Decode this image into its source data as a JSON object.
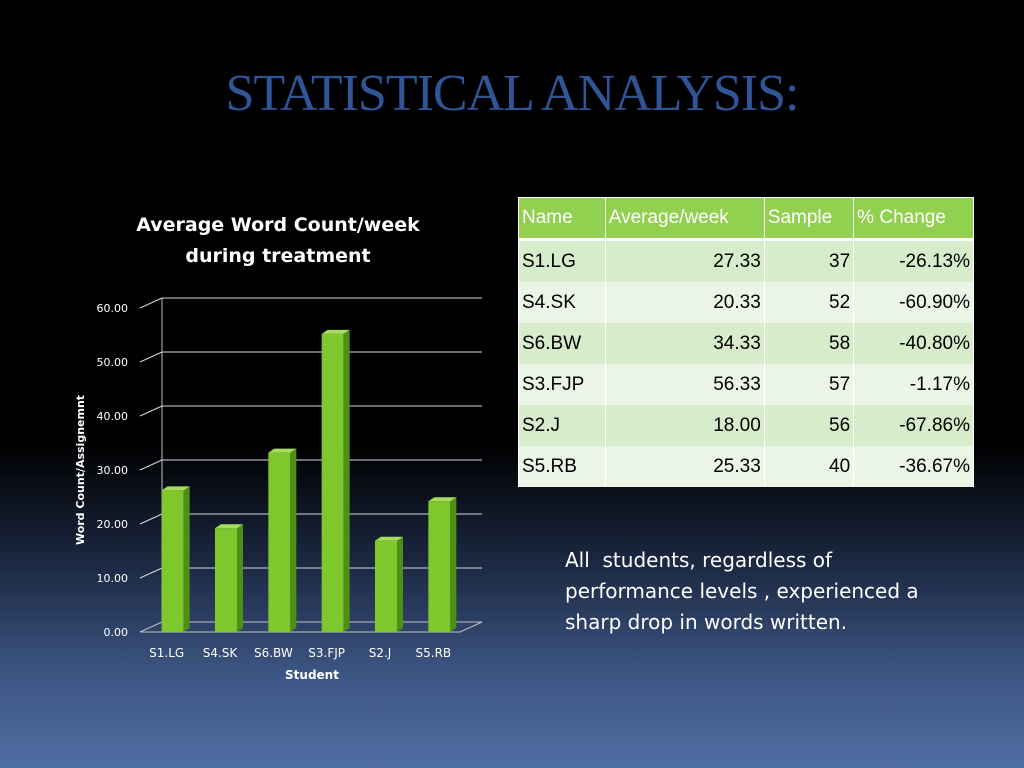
{
  "slide": {
    "title": "STATISTICAL ANALYSIS:",
    "summary": "All  students, regardless of performance levels , experienced a sharp drop in words written."
  },
  "chart_data": {
    "type": "bar",
    "title_line1": "Average Word Count/week",
    "title_line2": "during treatment",
    "xlabel": "Student",
    "ylabel": "Word Count/Assignemnt",
    "categories": [
      "S1.LG",
      "S4.SK",
      "S6.BW",
      "S3.FJP",
      "S2.J",
      "S5.RB"
    ],
    "values": [
      27.33,
      20.33,
      34.33,
      56.33,
      18.0,
      25.33
    ],
    "ylim": [
      0,
      60
    ],
    "yticks": [
      "0.00",
      "10.00",
      "20.00",
      "30.00",
      "40.00",
      "50.00",
      "60.00"
    ],
    "grid": true,
    "bar_color": "#7ec82e",
    "bar_side_color": "#4e8f18",
    "bar_top_color": "#a6dd5c"
  },
  "table": {
    "headers": [
      "Name",
      "Average/week",
      "Sample",
      "% Change"
    ],
    "rows": [
      [
        "S1.LG",
        "27.33",
        "37",
        "-26.13%"
      ],
      [
        "S4.SK",
        "20.33",
        "52",
        "-60.90%"
      ],
      [
        "S6.BW",
        "34.33",
        "58",
        "-40.80%"
      ],
      [
        "S3.FJP",
        "56.33",
        "57",
        "-1.17%"
      ],
      [
        "S2.J",
        "18.00",
        "56",
        "-67.86%"
      ],
      [
        "S5.RB",
        "25.33",
        "40",
        "-36.67%"
      ]
    ],
    "header_color": "#92d050"
  }
}
